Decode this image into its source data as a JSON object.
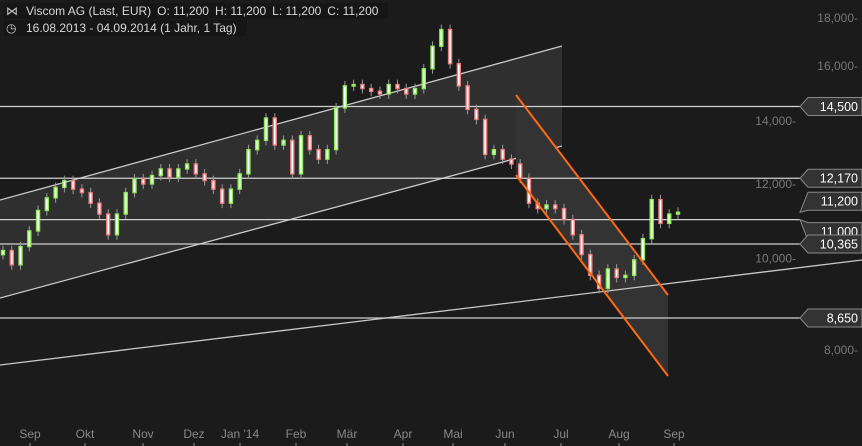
{
  "header": {
    "icon": "candlestick-chart-icon",
    "title": "Viscom AG (Last, EUR)",
    "open": "O: 11,200",
    "high": "H: 11,200",
    "low": "L: 11,200",
    "close": "C: 11,200",
    "range_icon": "clock-icon",
    "range": "16.08.2013 - 04.09.2014 (1 Jahr, 1 Tag)"
  },
  "colors": {
    "background": "#1b1b1b",
    "up": "#8ee85a",
    "down": "#f08080",
    "channel": "#ff6600",
    "level": "#d0d0d0"
  },
  "chart_data": {
    "type": "candlestick",
    "y_scale": "log",
    "ylim": [
      7000,
      19500
    ],
    "y_ticks": [
      {
        "v": 18000,
        "label": "18,000"
      },
      {
        "v": 16000,
        "label": "16,000"
      },
      {
        "v": 14000,
        "label": "14,000"
      },
      {
        "v": 12000,
        "label": "12,000"
      },
      {
        "v": 10000,
        "label": "10,000"
      },
      {
        "v": 8000,
        "label": "8,000"
      }
    ],
    "x_ticks": [
      "Sep",
      "Okt",
      "Nov",
      "Dez",
      "Jan '14",
      "Feb",
      "Mär",
      "Apr",
      "Mai",
      "Jun",
      "Jul",
      "Aug",
      "Sep"
    ],
    "closes": [
      10200,
      9850,
      10300,
      10700,
      11250,
      11600,
      11900,
      12100,
      11850,
      11750,
      11450,
      11150,
      10600,
      11150,
      11750,
      12150,
      12000,
      12250,
      12450,
      12200,
      12450,
      12600,
      12300,
      12100,
      11850,
      11450,
      11850,
      12300,
      13050,
      13350,
      14100,
      13200,
      13350,
      12300,
      13500,
      13050,
      12750,
      13050,
      14450,
      15250,
      15300,
      15150,
      15050,
      14950,
      15300,
      15150,
      14950,
      15150,
      15900,
      16800,
      17500,
      16100,
      15250,
      14400,
      14050,
      12900,
      13050,
      12750,
      12600,
      12170,
      11450,
      11300,
      11400,
      11300,
      11000,
      10600,
      10100,
      9600,
      9300,
      9750,
      9550,
      9600,
      9970,
      10500,
      11550,
      10900,
      11150,
      11200
    ],
    "levels": [
      {
        "v": 14500,
        "label": "14,500"
      },
      {
        "v": 12170,
        "label": "12,170"
      },
      {
        "v": 11000,
        "label": "11,000"
      },
      {
        "v": 10365,
        "label": "10,365"
      },
      {
        "v": 8650,
        "label": "8,650"
      }
    ],
    "last_price": {
      "v": 11200,
      "label": "11,200"
    }
  }
}
